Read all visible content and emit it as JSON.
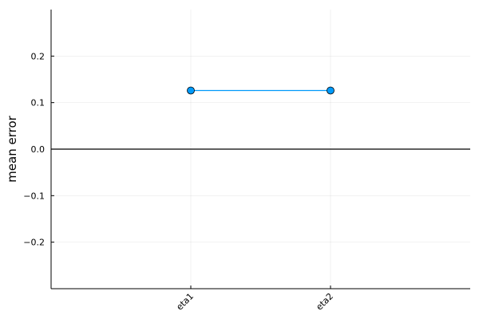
{
  "chart_data": {
    "type": "line",
    "title": "",
    "xlabel": "",
    "ylabel": "mean error",
    "categories": [
      "eta1",
      "eta2"
    ],
    "series": [
      {
        "values": [
          0.126,
          0.126
        ],
        "color": "#009AFA",
        "marker": "circle"
      }
    ],
    "ylim": [
      -0.3,
      0.3
    ],
    "xlim": [
      0,
      3
    ],
    "yticks": [
      {
        "value": -0.2,
        "label": "−0.2"
      },
      {
        "value": -0.1,
        "label": "−0.1"
      },
      {
        "value": 0.0,
        "label": "0.0"
      },
      {
        "value": 0.1,
        "label": "0.1"
      },
      {
        "value": 0.2,
        "label": "0.2"
      }
    ],
    "hline": {
      "value": 0.0,
      "color": "#000000"
    },
    "grid": true,
    "legend": "none"
  }
}
